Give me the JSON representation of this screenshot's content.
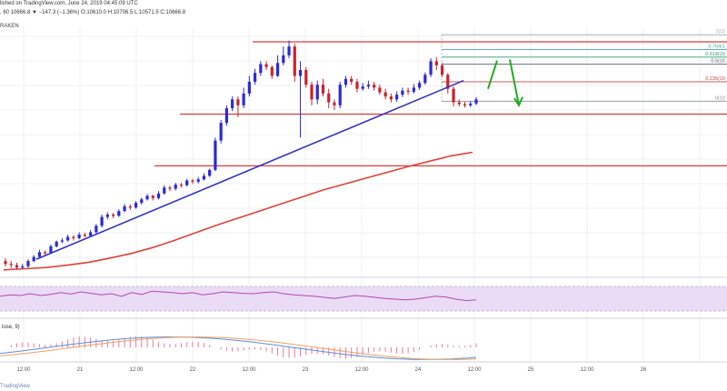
{
  "header": {
    "line1_text": "lished on TradingView.com, June 24, 2019 04:45:09 UTC",
    "line2_text": ", 60  10666.8 ▼ −147.3 (−1.36%)  O:10610.0  H:10706.5  L:10571.5  C:10666.8",
    "exchange": "RAKEN"
  },
  "watermark_text": "TradingView",
  "colors": {
    "bull": "#2a2ad6",
    "bear": "#c8232c",
    "trendline": "#3535c4",
    "ma": "#e0413a",
    "level": "#e03a3a",
    "arrow": "#22aa22",
    "rsi_band": "#eadcf5",
    "rsi_line": "#b447b4",
    "macd": "#5b8fd9",
    "signal": "#f0a060",
    "hist": "#e87aa0"
  },
  "chart_data": {
    "type": "candlestick",
    "x_tick_labels": [
      "12:00",
      "21",
      "12:00",
      "22",
      "12:00",
      "23",
      "12:00",
      "24",
      "12:00",
      "25",
      "12:00",
      "26"
    ],
    "candles": [
      [
        8.45,
        8.4,
        8.5,
        8.36
      ],
      [
        8.4,
        8.38,
        8.45,
        8.33
      ],
      [
        8.38,
        8.34,
        8.42,
        8.3
      ],
      [
        8.34,
        8.36,
        8.4,
        8.31
      ],
      [
        8.36,
        8.45,
        8.48,
        8.34
      ],
      [
        8.45,
        8.52,
        8.55,
        8.43
      ],
      [
        8.52,
        8.6,
        8.64,
        8.5
      ],
      [
        8.6,
        8.58,
        8.63,
        8.54
      ],
      [
        8.58,
        8.7,
        8.73,
        8.57
      ],
      [
        8.7,
        8.78,
        8.8,
        8.68
      ],
      [
        8.78,
        8.8,
        8.84,
        8.75
      ],
      [
        8.8,
        8.86,
        8.9,
        8.78
      ],
      [
        8.86,
        8.84,
        8.89,
        8.8
      ],
      [
        8.84,
        8.9,
        8.94,
        8.82
      ],
      [
        8.9,
        8.88,
        8.93,
        8.85
      ],
      [
        8.88,
        8.94,
        8.98,
        8.86
      ],
      [
        8.94,
        9.05,
        9.08,
        8.92
      ],
      [
        9.05,
        9.2,
        9.24,
        9.02
      ],
      [
        9.2,
        9.24,
        9.28,
        9.16
      ],
      [
        9.24,
        9.22,
        9.27,
        9.18
      ],
      [
        9.22,
        9.3,
        9.33,
        9.2
      ],
      [
        9.3,
        9.38,
        9.42,
        9.28
      ],
      [
        9.38,
        9.36,
        9.41,
        9.32
      ],
      [
        9.36,
        9.44,
        9.47,
        9.34
      ],
      [
        9.44,
        9.5,
        9.53,
        9.41
      ],
      [
        9.5,
        9.56,
        9.59,
        9.48
      ],
      [
        9.56,
        9.52,
        9.58,
        9.48
      ],
      [
        9.52,
        9.6,
        9.64,
        9.5
      ],
      [
        9.6,
        9.7,
        9.74,
        9.58
      ],
      [
        9.7,
        9.68,
        9.73,
        9.64
      ],
      [
        9.68,
        9.75,
        9.78,
        9.65
      ],
      [
        9.75,
        9.74,
        9.78,
        9.7
      ],
      [
        9.74,
        9.82,
        9.85,
        9.72
      ],
      [
        9.82,
        9.8,
        9.85,
        9.76
      ],
      [
        9.8,
        9.84,
        9.88,
        9.77
      ],
      [
        9.84,
        9.9,
        9.94,
        9.82
      ],
      [
        9.9,
        10.0,
        10.02,
        9.88
      ],
      [
        10.0,
        10.5,
        10.55,
        9.98
      ],
      [
        10.5,
        10.8,
        10.85,
        10.45
      ],
      [
        10.8,
        11.05,
        11.1,
        10.75
      ],
      [
        11.05,
        11.2,
        11.25,
        11.0
      ],
      [
        11.2,
        11.1,
        11.25,
        10.9
      ],
      [
        11.1,
        11.3,
        11.4,
        11.05
      ],
      [
        11.3,
        11.5,
        11.6,
        11.25
      ],
      [
        11.5,
        11.65,
        11.72,
        11.45
      ],
      [
        11.65,
        11.8,
        11.85,
        11.6
      ],
      [
        11.8,
        11.75,
        11.85,
        11.7
      ],
      [
        11.75,
        11.6,
        11.78,
        11.55
      ],
      [
        11.6,
        11.82,
        11.95,
        11.58
      ],
      [
        11.82,
        11.95,
        12.1,
        11.78
      ],
      [
        11.95,
        12.1,
        12.2,
        11.9
      ],
      [
        12.1,
        11.6,
        12.15,
        11.5
      ],
      [
        11.6,
        11.7,
        11.85,
        10.55
      ],
      [
        11.7,
        11.45,
        11.75,
        11.4
      ],
      [
        11.45,
        11.2,
        11.5,
        11.1
      ],
      [
        11.2,
        11.45,
        11.52,
        11.12
      ],
      [
        11.45,
        11.3,
        11.55,
        11.25
      ],
      [
        11.3,
        11.15,
        11.38,
        11.05
      ],
      [
        11.15,
        11.1,
        11.2,
        11.02
      ],
      [
        11.1,
        11.45,
        11.5,
        11.05
      ],
      [
        11.45,
        11.55,
        11.6,
        11.4
      ],
      [
        11.55,
        11.5,
        11.6,
        11.45
      ],
      [
        11.5,
        11.38,
        11.55,
        11.32
      ],
      [
        11.38,
        11.42,
        11.48,
        11.35
      ],
      [
        11.42,
        11.45,
        11.52,
        11.38
      ],
      [
        11.45,
        11.4,
        11.5,
        11.35
      ],
      [
        11.4,
        11.32,
        11.45,
        11.28
      ],
      [
        11.32,
        11.25,
        11.38,
        11.2
      ],
      [
        11.25,
        11.2,
        11.3,
        11.15
      ],
      [
        11.2,
        11.28,
        11.34,
        11.16
      ],
      [
        11.28,
        11.35,
        11.4,
        11.24
      ],
      [
        11.35,
        11.33,
        11.4,
        11.28
      ],
      [
        11.33,
        11.4,
        11.46,
        11.3
      ],
      [
        11.4,
        11.48,
        11.52,
        11.36
      ],
      [
        11.48,
        11.62,
        11.66,
        11.45
      ],
      [
        11.62,
        11.85,
        11.9,
        11.58
      ],
      [
        11.85,
        11.78,
        11.92,
        11.7
      ],
      [
        11.78,
        11.62,
        11.82,
        11.58
      ],
      [
        11.62,
        11.38,
        11.65,
        11.3
      ],
      [
        11.38,
        11.15,
        11.42,
        11.08
      ],
      [
        11.15,
        11.12,
        11.2,
        11.08
      ],
      [
        11.12,
        11.1,
        11.16,
        11.06
      ],
      [
        11.1,
        11.13,
        11.17,
        11.07
      ],
      [
        11.13,
        11.2,
        11.24,
        11.1
      ]
    ],
    "ma_values": [
      8.3,
      8.32,
      8.34,
      8.38,
      8.43,
      8.5,
      8.58,
      8.68,
      8.8,
      8.93,
      9.06,
      9.18,
      9.3,
      9.42,
      9.54,
      9.66,
      9.76,
      9.86,
      9.96,
      10.06,
      10.15,
      10.24,
      10.3
    ],
    "trendline_values": [
      8.48,
      11.52
    ],
    "fibonacci": [
      {
        "label": "1(11",
        "level": 12.3
      },
      {
        "label": "0.764(1",
        "level": 12.05
      },
      {
        "label": "0.618(10",
        "level": 11.92
      },
      {
        "label": "0.5(10",
        "level": 11.8
      },
      {
        "label": "0.236(10",
        "level": 11.5
      },
      {
        "label": "0(10",
        "level": 11.17
      }
    ],
    "horizontal_levels": [
      12.18,
      10.95,
      10.07
    ],
    "rsi_values": [
      48,
      52,
      50,
      55,
      50,
      53,
      58,
      54,
      60,
      56,
      52,
      55,
      48,
      58,
      53,
      62,
      60,
      58,
      55,
      58,
      52,
      55,
      60,
      58,
      56,
      55,
      58,
      60,
      55,
      52,
      50,
      48,
      45,
      42,
      46,
      50,
      48,
      45,
      42,
      40,
      38,
      40,
      44,
      48,
      46,
      40,
      36,
      38
    ]
  }
}
